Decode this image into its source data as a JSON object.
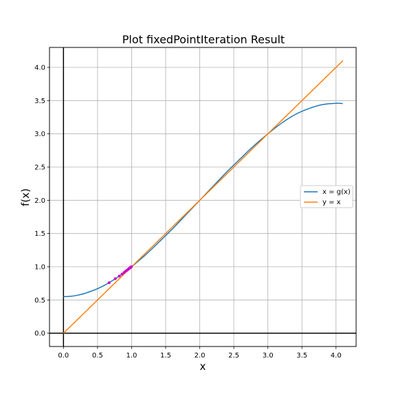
{
  "chart_data": {
    "type": "line",
    "title": "Plot fixedPointIteration Result",
    "xlabel": "x",
    "ylabel": "f(x)",
    "xlim": [
      -0.205,
      4.295
    ],
    "ylim": [
      -0.2,
      4.3
    ],
    "xticks": [
      "0.0",
      "0.5",
      "1.0",
      "1.5",
      "2.0",
      "2.5",
      "3.0",
      "3.5",
      "4.0"
    ],
    "yticks": [
      "0.0",
      "0.5",
      "1.0",
      "1.5",
      "2.0",
      "2.5",
      "3.0",
      "3.5",
      "4.0"
    ],
    "grid": true,
    "legend_position": "center-right",
    "series": [
      {
        "name": "x = g(x)",
        "color": "#1f77b4",
        "x": [
          0.0,
          0.1,
          0.2,
          0.3,
          0.4,
          0.5,
          0.6,
          0.7,
          0.8,
          0.9,
          1.0,
          1.2,
          1.4,
          1.6,
          1.8,
          2.0,
          2.2,
          2.4,
          2.6,
          2.8,
          3.0,
          3.2,
          3.4,
          3.6,
          3.8,
          4.0,
          4.1
        ],
        "y": [
          0.55,
          0.555,
          0.57,
          0.595,
          0.63,
          0.67,
          0.72,
          0.78,
          0.845,
          0.92,
          1.0,
          1.175,
          1.37,
          1.57,
          1.785,
          2.0,
          2.215,
          2.43,
          2.63,
          2.825,
          3.0,
          3.16,
          3.29,
          3.38,
          3.44,
          3.46,
          3.455
        ]
      },
      {
        "name": "y = x",
        "color": "#ff7f0e",
        "x": [
          0.0,
          4.1
        ],
        "y": [
          0.0,
          4.1
        ]
      }
    ],
    "iteration_points": {
      "color": "#cc00cc",
      "x": [
        0.67,
        0.76,
        0.82,
        0.86,
        0.89,
        0.915,
        0.935,
        0.95,
        0.963,
        0.973,
        0.981,
        0.987,
        0.992,
        0.996
      ],
      "y": [
        0.76,
        0.82,
        0.86,
        0.89,
        0.915,
        0.935,
        0.95,
        0.963,
        0.973,
        0.981,
        0.987,
        0.992,
        0.996,
        0.999
      ]
    }
  }
}
